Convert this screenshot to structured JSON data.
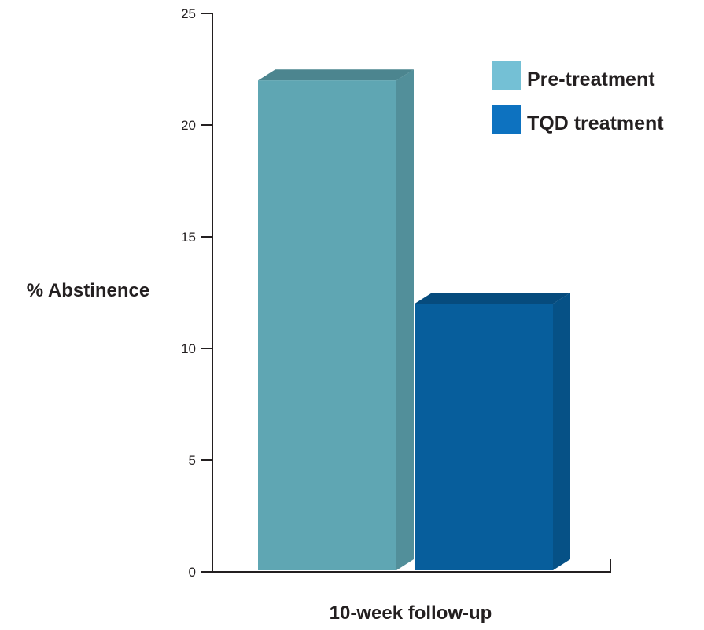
{
  "chart_data": {
    "type": "bar",
    "style": "3d",
    "categories": [
      "10-week follow-up"
    ],
    "series": [
      {
        "name": "Pre-treatment",
        "values": [
          22
        ],
        "color": "#5fa6b3",
        "legend_color": "#74c0d5"
      },
      {
        "name": "TQD treatment",
        "values": [
          12
        ],
        "color": "#075e9c",
        "legend_color": "#0d72c0"
      }
    ],
    "title": "",
    "xlabel": "10-week follow-up",
    "ylabel": "% Abstinence",
    "ylim": [
      0,
      25
    ],
    "yticks": [
      "0",
      "5",
      "10",
      "15",
      "20",
      "25"
    ],
    "grid": false,
    "legend_position": "top-right"
  }
}
